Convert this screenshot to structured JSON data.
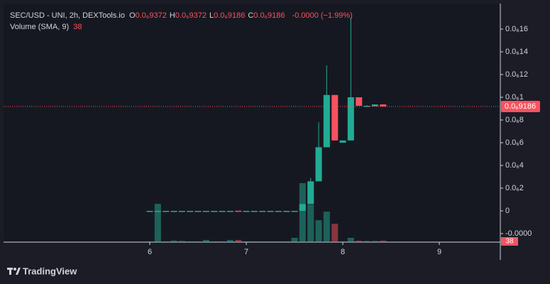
{
  "chart_data": {
    "type": "candlestick",
    "title": "SEC/USD - UNI, 2h, DEXTools.io",
    "ohlc_legend": [
      {
        "key": "O",
        "text": "0.0₆9372"
      },
      {
        "key": "H",
        "text": "0.0₆9372"
      },
      {
        "key": "L",
        "text": "0.0₆9186"
      },
      {
        "key": "C",
        "text": "0.0₆9186"
      }
    ],
    "change_text": "-0.0000 (−1.99%)",
    "volume_title": "Volume (SMA, 9)",
    "volume_text": "38",
    "up_color": "#22ab94",
    "down_color": "#f7525f",
    "x": [
      6.0,
      6.083,
      6.167,
      6.25,
      6.333,
      6.417,
      6.5,
      6.583,
      6.667,
      6.75,
      6.833,
      6.917,
      7.0,
      7.083,
      7.167,
      7.25,
      7.333,
      7.417,
      7.5,
      7.583,
      7.667,
      7.75,
      7.833,
      7.917,
      8.0,
      8.083,
      8.167,
      8.25,
      8.333,
      8.417
    ],
    "open": [
      0,
      0,
      0,
      0,
      0,
      0,
      0,
      0,
      0,
      0,
      0,
      1e-10,
      0,
      0,
      0,
      0,
      0,
      0,
      0,
      0,
      6e-09,
      2.6e-08,
      5.6e-08,
      1.02e-07,
      6e-08,
      6.2e-08,
      1e-07,
      9.25e-08,
      9.2e-08,
      9.372e-08
    ],
    "high": [
      0,
      0,
      0,
      0,
      0,
      0,
      0,
      0,
      0,
      0,
      0,
      1e-10,
      0,
      0,
      0,
      0,
      0,
      0,
      0,
      6e-09,
      2.9e-08,
      7.8e-08,
      1.28e-07,
      1.02e-07,
      6.2e-08,
      1.7e-07,
      1e-07,
      9.3e-08,
      9.37e-08,
      9.372e-08
    ],
    "low": [
      0,
      0,
      0,
      0,
      0,
      0,
      0,
      0,
      0,
      0,
      0,
      0,
      0,
      0,
      0,
      0,
      0,
      0,
      0,
      0,
      6e-09,
      2.6e-08,
      5.6e-08,
      6.2e-08,
      6e-08,
      6.2e-08,
      9.25e-08,
      9.2e-08,
      9.2e-08,
      9.186e-08
    ],
    "close": [
      0,
      0,
      0,
      0,
      0,
      0,
      0,
      0,
      0,
      0,
      0,
      0,
      0,
      0,
      0,
      0,
      0,
      0,
      0,
      6e-09,
      2.6e-08,
      5.6e-08,
      1.02e-07,
      6.2e-08,
      6.2e-08,
      1e-07,
      9.25e-08,
      9.25e-08,
      9.37e-08,
      9.186e-08
    ],
    "volume": [
      20,
      980,
      20,
      40,
      30,
      20,
      20,
      55,
      20,
      20,
      55,
      55,
      20,
      20,
      20,
      20,
      20,
      20,
      110,
      1510,
      960,
      560,
      780,
      470,
      20,
      110,
      36,
      30,
      30,
      38
    ],
    "volume_lim": [
      0,
      2000
    ],
    "xlim": [
      4.485,
      9.632
    ],
    "xticks": [
      6,
      7,
      8,
      9
    ],
    "ylim": [
      -2.75e-08,
      1.825e-07
    ],
    "yticks": [
      {
        "value": 1.6e-07,
        "label": "0.0₆16"
      },
      {
        "value": 1.4e-07,
        "label": "0.0₆14"
      },
      {
        "value": 1.2e-07,
        "label": "0.0₆12"
      },
      {
        "value": 1e-07,
        "label": "0.0₆1"
      },
      {
        "value": 8e-08,
        "label": "0.0₆8"
      },
      {
        "value": 6e-08,
        "label": "0.0₆6"
      },
      {
        "value": 4e-08,
        "label": "0.0₆4"
      },
      {
        "value": 2e-08,
        "label": "0.0₆2"
      },
      0,
      {
        "value": -2e-08,
        "label": "-0.0000"
      }
    ],
    "last_price": {
      "value": 9.186e-08,
      "label": "0.0₆9186"
    },
    "brand": "TradingView"
  }
}
